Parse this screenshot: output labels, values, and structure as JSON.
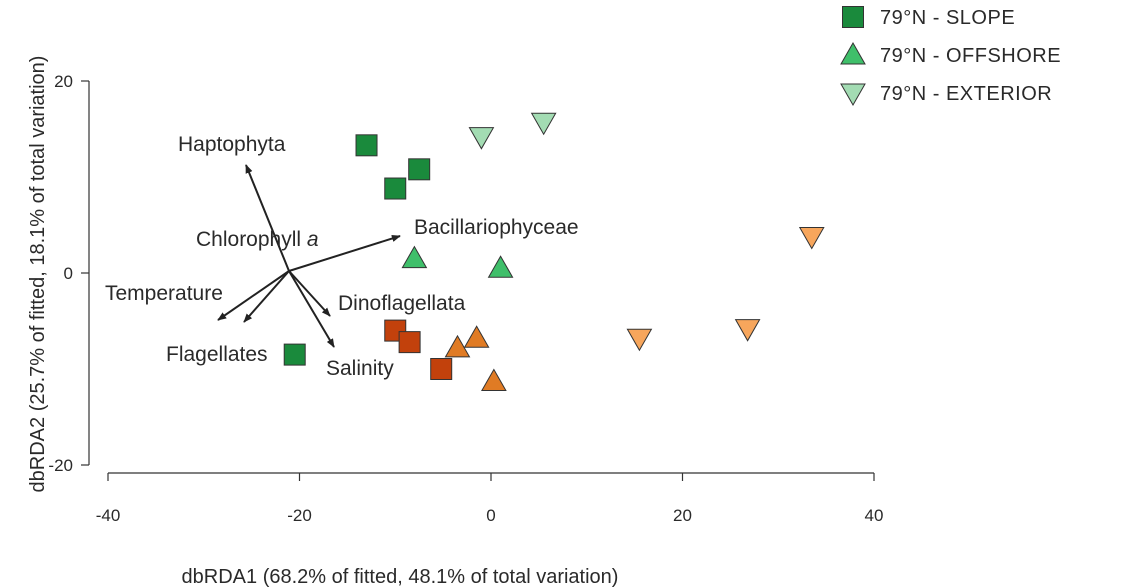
{
  "chart_data": {
    "type": "scatter",
    "xlabel": "dbRDA1 (68.2% of fitted, 48.1% of total variation)",
    "ylabel": "dbRDA2 (25.7% of fitted, 18.1% of total variation)",
    "xlim": [
      -40,
      40
    ],
    "ylim": [
      -20,
      20
    ],
    "xticks": [
      -40,
      -20,
      0,
      20,
      40
    ],
    "yticks": [
      -20,
      0,
      20
    ],
    "legend_position": "top-right",
    "legend": [
      {
        "label": "79°N  - SLOPE",
        "shape": "square",
        "color": "#1a8a3c"
      },
      {
        "label": "79°N  - OFFSHORE",
        "shape": "triangle-up",
        "color": "#3fbf6a"
      },
      {
        "label": "79°N  - EXTERIOR",
        "shape": "triangle-down",
        "color": "#a3dcb3"
      }
    ],
    "series": [
      {
        "shape": "square",
        "color": "#1a8a3c",
        "points": [
          [
            -13,
            13.3
          ],
          [
            -10,
            8.8
          ],
          [
            -7.5,
            10.8
          ],
          [
            -20.5,
            -8.5
          ]
        ]
      },
      {
        "shape": "triangle-up",
        "color": "#3fbf6a",
        "points": [
          [
            -8,
            1.5
          ],
          [
            1,
            0.5
          ]
        ]
      },
      {
        "shape": "triangle-down",
        "color": "#a3dcb3",
        "points": [
          [
            -1,
            14.2
          ],
          [
            5.5,
            15.7
          ]
        ]
      },
      {
        "shape": "square",
        "color": "#c2410c",
        "points": [
          [
            -10,
            -6
          ],
          [
            -8.5,
            -7.2
          ],
          [
            -5.2,
            -10
          ]
        ]
      },
      {
        "shape": "triangle-up",
        "color": "#e07b24",
        "points": [
          [
            -3.5,
            -7.8
          ],
          [
            -1.5,
            -6.8
          ],
          [
            0.3,
            -11.3
          ]
        ]
      },
      {
        "shape": "triangle-down",
        "color": "#f7a65c",
        "points": [
          [
            15.5,
            -6.8
          ],
          [
            26.8,
            -5.8
          ],
          [
            33.5,
            3.8
          ]
        ]
      }
    ],
    "vectors": [
      {
        "label": "Haptophyta",
        "label_prefix": "",
        "label_italic": "",
        "x": -25,
        "y": 11.3
      },
      {
        "label": "Chlorophyll a",
        "label_prefix": "Chlorophyll ",
        "label_italic": "a",
        "x": -27.5,
        "y": -4.8
      },
      {
        "label": "Bacillariophyceae",
        "label_prefix": "",
        "label_italic": "",
        "x": -9.5,
        "y": 3.8
      },
      {
        "label": "Temperature",
        "label_prefix": "",
        "label_italic": "",
        "x": -26,
        "y": -5.5
      },
      {
        "label": "Flagellates",
        "label_prefix": "",
        "label_italic": "",
        "x": -16.5,
        "y": -4.8
      },
      {
        "label": "Dinoflagellata",
        "label_prefix": "",
        "label_italic": "",
        "x": -16.5,
        "y": -7.8
      },
      {
        "label": "Salinity",
        "label_prefix": "",
        "label_italic": "",
        "x": -21.5,
        "y": 0.5
      }
    ],
    "vector_origin": [
      -21,
      0.5
    ]
  }
}
